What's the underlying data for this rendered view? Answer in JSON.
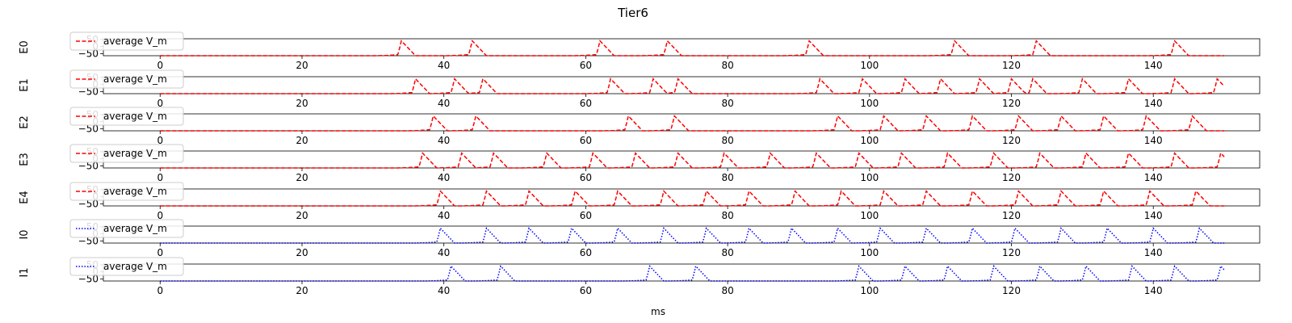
{
  "chart_data": {
    "type": "line",
    "title": "Tier6",
    "xlabel": "ms",
    "xlim": [
      -8,
      155
    ],
    "ylim": [
      -65,
      55
    ],
    "x_ticks": [
      0,
      20,
      40,
      60,
      80,
      100,
      120,
      140
    ],
    "y_ticks": [
      50,
      0,
      -50
    ],
    "legend_placement": "upper-left",
    "grid": false,
    "baseline": -65,
    "peak": 40,
    "x_end": 150,
    "panels": [
      {
        "ylabel": "E0",
        "series": [
          {
            "name": "average V_m",
            "color": "#ff0000",
            "style": "dashed",
            "spike_times": [
              34,
              44,
              62,
              71.5,
              91.5,
              112,
              123.5,
              143
            ]
          }
        ]
      },
      {
        "ylabel": "E1",
        "series": [
          {
            "name": "average V_m",
            "color": "#ff0000",
            "style": "dashed",
            "spike_times": [
              36,
              41.5,
              45.5,
              63.5,
              69.5,
              73,
              93,
              99,
              105,
              110,
              115.5,
              120,
              123,
              130,
              136.5,
              143,
              149
            ]
          }
        ]
      },
      {
        "ylabel": "E2",
        "series": [
          {
            "name": "average V_m",
            "color": "#ff0000",
            "style": "dashed",
            "spike_times": [
              38.5,
              44.5,
              66,
              72.5,
              95.5,
              102,
              108,
              114.5,
              121,
              127,
              133,
              139,
              145.5
            ]
          }
        ]
      },
      {
        "ylabel": "E3",
        "series": [
          {
            "name": "average V_m",
            "color": "#ff0000",
            "style": "dashed",
            "spike_times": [
              37,
              42.5,
              47,
              54.5,
              61,
              67,
              73,
              79.5,
              86,
              92.5,
              98.5,
              104.5,
              111,
              117.5,
              124,
              130.5,
              136.5,
              143,
              149.5
            ]
          }
        ]
      },
      {
        "ylabel": "E4",
        "series": [
          {
            "name": "average V_m",
            "color": "#ff0000",
            "style": "dashed",
            "spike_times": [
              39.5,
              46,
              52,
              58.5,
              64.5,
              71,
              77,
              83,
              89.5,
              96,
              102,
              108,
              114.5,
              121,
              127,
              133,
              139.5,
              146
            ]
          }
        ]
      },
      {
        "ylabel": "I0",
        "series": [
          {
            "name": "average V_m",
            "color": "#0000ff",
            "style": "dotted",
            "spike_times": [
              39.5,
              46,
              52,
              58,
              64.5,
              71,
              77,
              83,
              89,
              95.5,
              101.5,
              108,
              114.5,
              120.5,
              127,
              133.5,
              140,
              146.5
            ]
          }
        ]
      },
      {
        "ylabel": "I1",
        "series": [
          {
            "name": "average V_m",
            "color": "#0000ff",
            "style": "dotted",
            "spike_times": [
              41,
              48,
              69,
              75.5,
              98.5,
              105,
              111,
              117.5,
              124,
              130.5,
              137,
              143,
              149.5
            ]
          }
        ]
      }
    ]
  }
}
